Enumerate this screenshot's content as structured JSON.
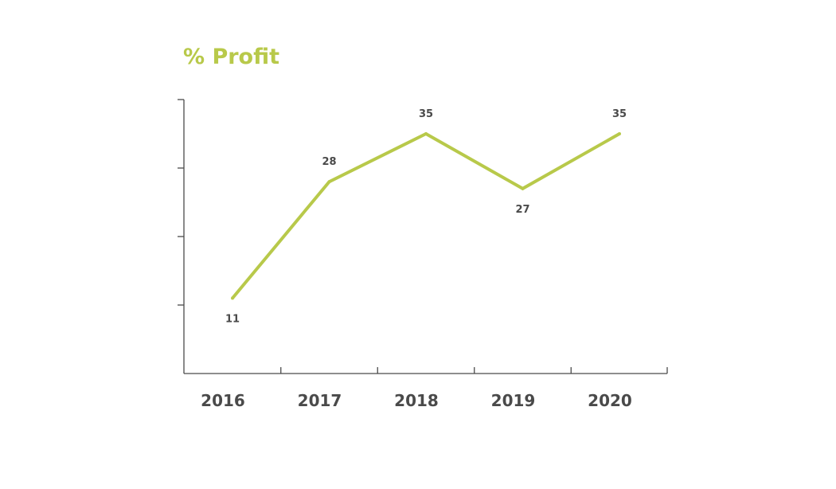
{
  "chart_data": {
    "type": "line",
    "title": "% Profit",
    "xlabel": "",
    "ylabel": "",
    "categories": [
      "2016",
      "2017",
      "2018",
      "2019",
      "2020"
    ],
    "series": [
      {
        "values": [
          11,
          28,
          35,
          27,
          35
        ]
      }
    ],
    "ylim": [
      0,
      40
    ],
    "y_ticks": [
      0,
      10,
      20,
      30,
      40
    ],
    "y_tick_labels_shown": false,
    "grid": false,
    "line_color": "#b8c94a",
    "text_color": "#4a4a4a",
    "data_label_positions": [
      "below",
      "above",
      "above",
      "below",
      "above"
    ]
  }
}
